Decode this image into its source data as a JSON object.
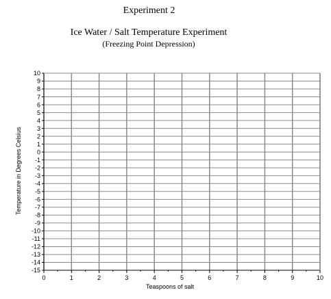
{
  "header": {
    "experiment": "Experiment  2",
    "title": "Ice Water / Salt Temperature Experiment",
    "subtitle": "(Freezing Point Depression)"
  },
  "chart_data": {
    "type": "scatter",
    "title": "Ice Water / Salt Temperature Experiment",
    "subtitle": "(Freezing Point Depression)",
    "xlabel": "Teaspoons of salt",
    "ylabel": "Temperature in Degrees Celsius",
    "xlim": [
      0,
      10
    ],
    "ylim": [
      -15,
      10
    ],
    "x_ticks": [
      "0",
      "1",
      "2",
      "3",
      "4",
      "5",
      "6",
      "7",
      "8",
      "9",
      "10"
    ],
    "y_ticks": [
      "10",
      "9",
      "8",
      "7",
      "6",
      "5",
      "4",
      "3",
      "2",
      "1",
      "0",
      "-1",
      "-2",
      "-3",
      "-4",
      "-5",
      "-6",
      "-7",
      "-8",
      "-9",
      "-10",
      "-11",
      "-12",
      "-13",
      "-14",
      "-15"
    ],
    "grid": true,
    "series": [],
    "colors": {
      "grid": "#8a8a8a",
      "axis": "#000000"
    }
  }
}
